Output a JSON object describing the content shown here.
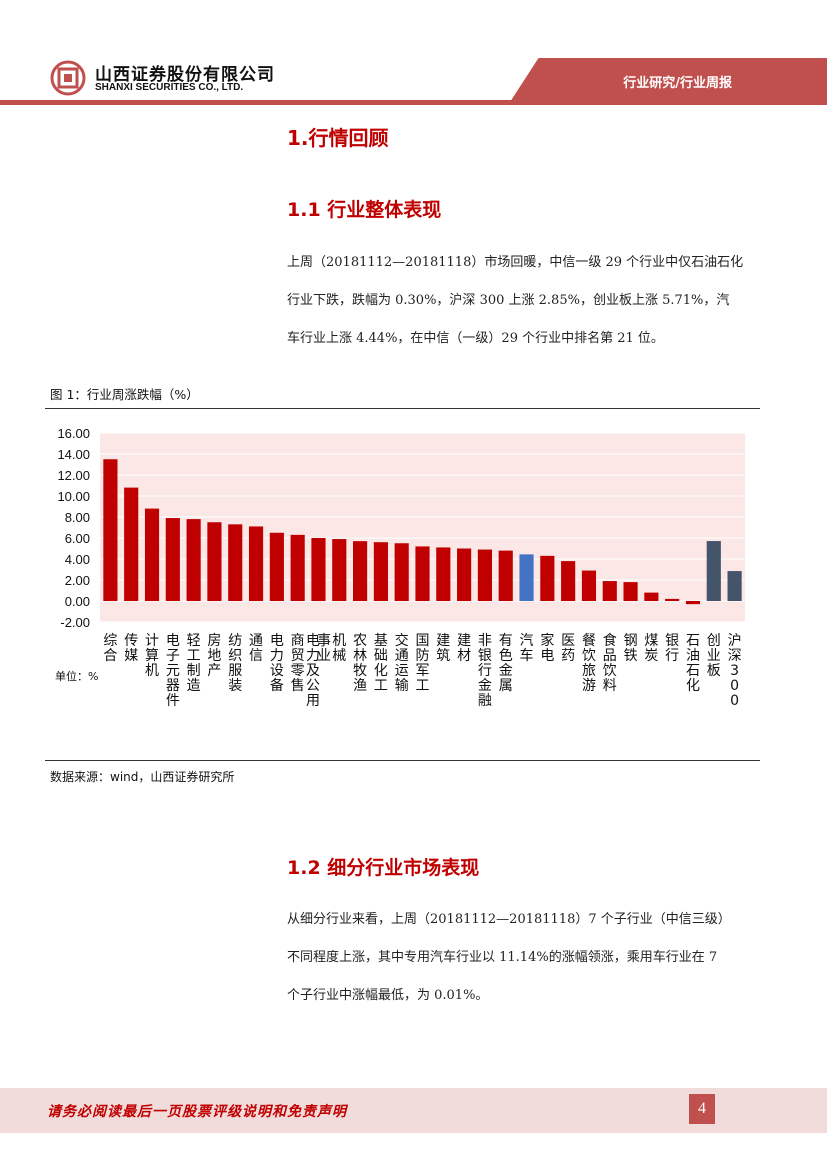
{
  "header": {
    "company_cn": "山西证券股份有限公司",
    "company_en": "SHANXI SECURITIES CO., LTD.",
    "section_tag": "行业研究/行业周报",
    "logo_icon": "company-logo-icon",
    "accent_color": "#c0504d"
  },
  "section1": {
    "title": "1.行情回顾",
    "sub1_title": "1.1 行业整体表现",
    "sub1_lines": [
      "上周（20181112—20181118）市场回暖，中信一级 29 个行业中仅石油石化",
      "行业下跌，跌幅为 0.30%，沪深 300 上涨 2.85%，创业板上涨 5.71%，汽",
      "车行业上涨 4.44%，在中信（一级）29 个行业中排名第 21 位。"
    ]
  },
  "figure": {
    "title": "图 1：行业周涨跌幅（%）",
    "unit_label": "单位：%",
    "source": "数据来源：wind，山西证券研究所"
  },
  "chart_data": {
    "type": "bar",
    "ylim": [
      -2,
      16
    ],
    "yticks": [
      "16.00",
      "14.00",
      "12.00",
      "10.00",
      "8.00",
      "6.00",
      "4.00",
      "2.00",
      "0.00",
      "-2.00"
    ],
    "grid": true,
    "categories": [
      "综合",
      "传媒",
      "计算机",
      "电子元器件",
      "轻工制造",
      "房地产",
      "纺织服装",
      "通信",
      "电力设备",
      "商贸零售",
      "电力及公用事业",
      "机械",
      "农林牧渔",
      "基础化工",
      "交通运输",
      "国防军工",
      "建筑",
      "建材",
      "非银行金融",
      "有色金属",
      "汽车",
      "家电",
      "医药",
      "餐饮旅游",
      "食品饮料",
      "钢铁",
      "煤炭",
      "银行",
      "石油石化",
      "创业板",
      "沪深300"
    ],
    "values": [
      13.5,
      10.8,
      8.8,
      7.9,
      7.8,
      7.5,
      7.3,
      7.1,
      6.5,
      6.3,
      6.0,
      5.9,
      5.7,
      5.6,
      5.5,
      5.2,
      5.1,
      5.0,
      4.9,
      4.8,
      4.44,
      4.3,
      3.8,
      2.9,
      1.9,
      1.8,
      0.8,
      0.2,
      -0.3,
      5.71,
      2.85
    ],
    "colors": {
      "default": "#c00000",
      "highlight": "#4472c4",
      "index": "#44546a",
      "plot_bg": "#fbe7e6"
    },
    "highlight_category": "汽车",
    "index_categories": [
      "创业板",
      "沪深300"
    ]
  },
  "section2": {
    "sub2_title": "1.2 细分行业市场表现",
    "sub2_lines": [
      "从细分行业来看，上周（20181112—20181118）7  个子行业（中信三级）",
      "不同程度上涨，其中专用汽车行业以 11.14%的涨幅领涨，乘用车行业在 7",
      "个子行业中涨幅最低，为 0.01%。"
    ]
  },
  "footer": {
    "disclaimer": "请务必阅读最后一页股票评级说明和免责声明",
    "page_number": "4"
  }
}
